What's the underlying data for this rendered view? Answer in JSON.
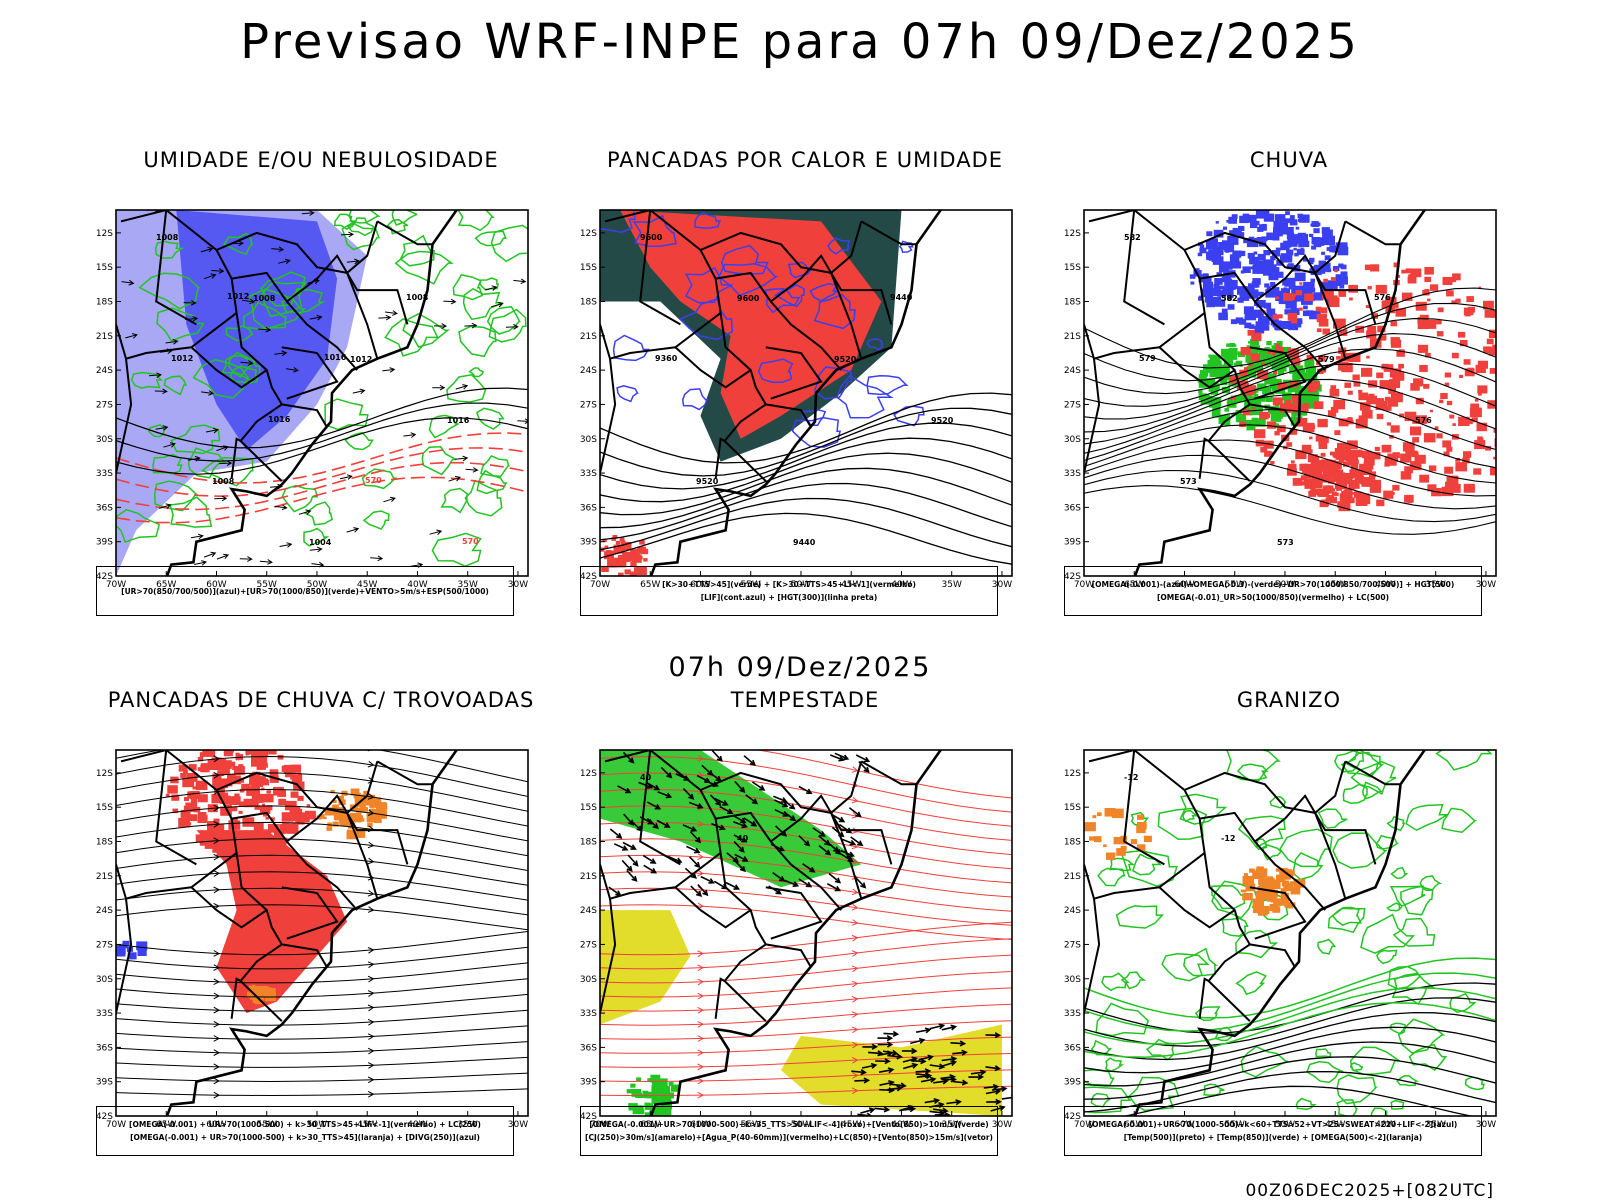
{
  "title": "Previsao WRF-INPE  para 07h 09/Dez/2025",
  "subtitle": "07h 09/Dez/2025",
  "footer": "00Z06DEC2025+[082UTC]",
  "lat_labels": [
    "12S",
    "15S",
    "18S",
    "21S",
    "24S",
    "27S",
    "30S",
    "33S",
    "36S",
    "39S",
    "42S"
  ],
  "lon_labels": [
    "70W",
    "65W",
    "60W",
    "55W",
    "50W",
    "45W",
    "40W",
    "35W",
    "30W"
  ],
  "colors": {
    "red": "#f0403c",
    "blue": "#3a3ff0",
    "lightblue": "#a8a8f4",
    "green": "#22c422",
    "darkteal": "#244a48",
    "orange": "#f08428",
    "yellow": "#e2dc2a",
    "black": "#000000"
  },
  "panels": [
    {
      "title": "UMIDADE E/OU NEBULOSIDADE",
      "legend": [
        "[UR>70(850/700/500)](azul)+[UR>70(1000/850)](verde)+VENTO>5m/s+ESP(500/1000)"
      ],
      "contour_labels": [
        "1008",
        "1008",
        "1012",
        "1016",
        "1008",
        "1004",
        "1008",
        "1012",
        "1016",
        "570",
        "570",
        "1012",
        "1016"
      ]
    },
    {
      "title": "PANCADAS POR CALOR E UMIDADE",
      "legend": [
        "[K>30+TTS>45](verde) + [K>30+TTS>45+LI<-1](vermelho)",
        "[LIF](cont.azul) + [HGT(300)](linha preta)"
      ],
      "contour_labels": [
        "9600",
        "9600",
        "9520",
        "9520",
        "9520",
        "9440",
        "9440",
        "9360"
      ]
    },
    {
      "title": "CHUVA",
      "legend": [
        "[OMEGA(-0.001)-(azul)+OMEGA(-0.3)-(verde)+UR>70(1000/850/700/500)] + HGT(500)",
        "[OMEGA(-0.01)_UR>50(1000/850)(vermelho) + LC(500)"
      ],
      "contour_labels": [
        "582",
        "582",
        "579",
        "576",
        "573",
        "573",
        "576",
        "579"
      ]
    },
    {
      "title": "PANCADAS DE CHUVA C/ TROVOADAS",
      "legend": [
        "[OMEGA(-0.001) + UR>70(1000-500) + k>30_TTS>45+LIF<-1](vermelho) + LC(250)",
        "[OMEGA(-0.001) + UR>70(1000-500) + k>30_TTS>45](laranja) + [DIVG(250)](azul)"
      ],
      "contour_labels": []
    },
    {
      "title": "TEMPESTADE",
      "legend": [
        "[OMEGA(-0.001)+UR>70(1000-500)+k>35_TTS>50+LIF<-4](roxo)+[Vento(850)>10m/s](verde)",
        "[CJ(250)>30m/s](amarelo)+[Agua_P(40-60mm)](vermelho)+LC(850)+[Vento(850)>15m/s](vetor)"
      ],
      "contour_labels": [
        "40",
        "40"
      ]
    },
    {
      "title": "GRANIZO",
      "legend": [
        "[OMEGA(-0.001)+UR>70(1000-500)+k<60+TTS>52+VT>25+SWEAT>220+LIF<-2](azul)",
        "[Temp(500)](preto) + [Temp(850)](verde) + [OMEGA(500)<-2](laranja)"
      ],
      "contour_labels": [
        "-12",
        "-12"
      ]
    }
  ]
}
